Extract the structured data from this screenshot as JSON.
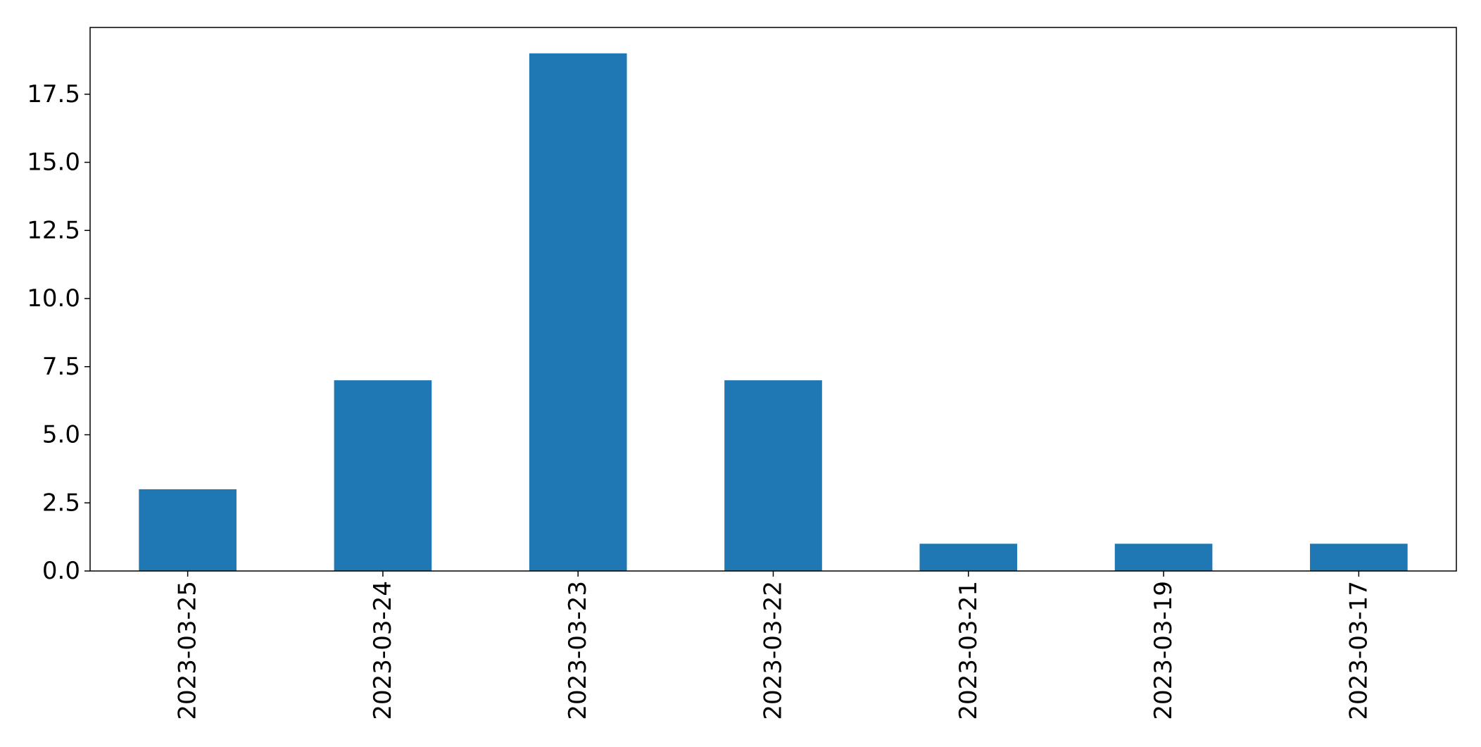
{
  "chart_data": {
    "type": "bar",
    "title": "",
    "xlabel": "",
    "ylabel": "",
    "categories": [
      "2023-03-25",
      "2023-03-24",
      "2023-03-23",
      "2023-03-22",
      "2023-03-21",
      "2023-03-19",
      "2023-03-17"
    ],
    "values": [
      3,
      7,
      19,
      7,
      1,
      1,
      1
    ],
    "ylim": [
      0,
      19.95
    ],
    "yticks": [
      0.0,
      2.5,
      5.0,
      7.5,
      10.0,
      12.5,
      15.0,
      17.5
    ],
    "ytick_labels": [
      "0.0",
      "2.5",
      "5.0",
      "7.5",
      "10.0",
      "12.5",
      "15.0",
      "17.5"
    ],
    "bar_color": "#1f77b4",
    "grid": false,
    "legend": "none",
    "xtick_rotation": "vertical"
  }
}
